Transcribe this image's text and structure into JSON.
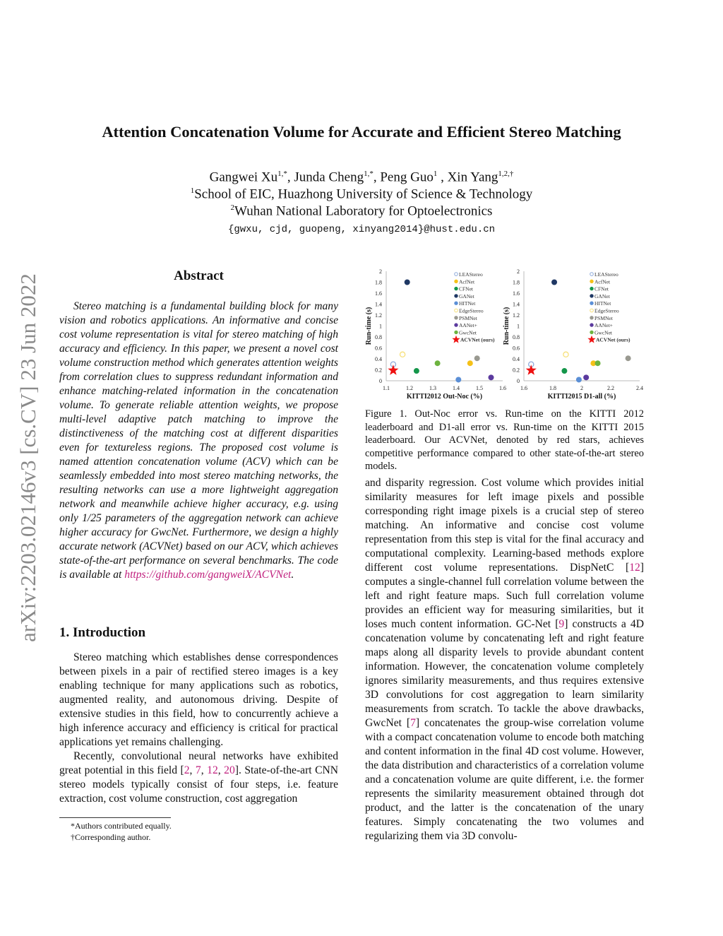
{
  "arxiv_stamp": "arXiv:2203.02146v3  [cs.CV]  23 Jun 2022",
  "title": "Attention Concatenation Volume for Accurate and Efficient Stereo Matching",
  "authors": {
    "names": [
      {
        "name": "Gangwei Xu",
        "sup": "1,*"
      },
      {
        "name": "Junda Cheng",
        "sup": "1,*"
      },
      {
        "name": "Peng Guo",
        "sup": "1"
      },
      {
        "name": "Xin Yang",
        "sup": "1,2,†"
      }
    ],
    "affiliations": [
      {
        "sup": "1",
        "text": "School of EIC, Huazhong University of Science & Technology"
      },
      {
        "sup": "2",
        "text": "Wuhan National Laboratory for Optoelectronics"
      }
    ],
    "emails": "{gwxu, cjd, guopeng, xinyang2014}@hust.edu.cn"
  },
  "abstract": {
    "heading": "Abstract",
    "text": "Stereo matching is a fundamental building block for many vision and robotics applications. An informative and concise cost volume representation is vital for stereo matching of high accuracy and efficiency. In this paper, we present a novel cost volume construction method which generates attention weights from correlation clues to suppress redundant information and enhance matching-related information in the concatenation volume. To generate reliable attention weights, we propose multi-level adaptive patch matching to improve the distinctiveness of the matching cost at different disparities even for textureless regions. The proposed cost volume is named attention concatenation volume (ACV) which can be seamlessly embedded into most stereo matching networks, the resulting networks can use a more lightweight aggregation network and meanwhile achieve higher accuracy, e.g. using only 1/25 parameters of the aggregation network can achieve higher accuracy for GwcNet. Furthermore, we design a highly accurate network (ACVNet) based on our ACV, which achieves state-of-the-art performance on several benchmarks. The code is available at ",
    "link": "https://github.com/gangweiX/ACVNet",
    "end": "."
  },
  "intro": {
    "heading": "1. Introduction",
    "p1": "Stereo matching which establishes dense correspondences between pixels in a pair of rectified stereo images is a key enabling technique for many applications such as robotics, augmented reality, and autonomous driving. Despite of extensive studies in this field, how to concurrently achieve a high inference accuracy and efficiency is critical for practical applications yet remains challenging.",
    "p2a": "Recently, convolutional neural networks have exhibited great potential in this field [",
    "p2refs": [
      "2",
      "7",
      "12",
      "20"
    ],
    "p2b": "]. State-of-the-art CNN stereo models typically consist of four steps, i.e. feature extraction, cost volume construction, cost aggregation"
  },
  "right_column": {
    "t1": "and disparity regression. Cost volume which provides initial similarity measures for left image pixels and possible corresponding right image pixels is a crucial step of stereo matching. An informative and concise cost volume representation from this step is vital for the final accuracy and computational complexity. Learning-based methods explore different cost volume representations. DispNetC [",
    "r1": "12",
    "t2": "] computes a single-channel full correlation volume between the left and right feature maps. Such full correlation volume provides an efficient way for measuring similarities, but it loses much content information. GC-Net [",
    "r2": "9",
    "t3": "] constructs a 4D concatenation volume by concatenating left and right feature maps along all disparity levels to provide abundant content information. However, the concatenation volume completely ignores similarity measurements, and thus requires extensive 3D convolutions for cost aggregation to learn similarity measurements from scratch. To tackle the above drawbacks, GwcNet [",
    "r3": "7",
    "t4": "] concatenates the group-wise correlation volume with a compact concatenation volume to encode both matching and content information in the final 4D cost volume. However, the data distribution and characteristics of a correlation volume and a concatenation volume are quite different, i.e. the former represents the similarity measurement obtained through dot product, and the latter is the concatenation of the unary features. Simply concatenating the two volumes and regularizing them via 3D convolu-"
  },
  "figure": {
    "caption": "Figure 1. Out-Noc error vs. Run-time on the KITTI 2012 leaderboard and D1-all error vs. Run-time on the KITTI 2015 leaderboard. Our ACVNet, denoted by red stars, achieves competitive performance compared to other state-of-the-art stereo models."
  },
  "footnotes": [
    "*Authors contributed equally.",
    "†Corresponding author."
  ],
  "chart_data": [
    {
      "type": "scatter",
      "xlabel": "KITTI2012 Out-Noc (%)",
      "ylabel": "Run-time (s)",
      "xlim": [
        1.1,
        1.6
      ],
      "ylim": [
        0,
        2
      ],
      "xticks": [
        "1.1",
        "1.2",
        "1.3",
        "1.4",
        "1.5",
        "1.6"
      ],
      "yticks": [
        "0",
        "0.2",
        "0.4",
        "0.6",
        "0.8",
        "1",
        "1.2",
        "1.4",
        "1.6",
        "1.8",
        "2"
      ],
      "grid": false,
      "legend_position": "top-right",
      "series": [
        {
          "name": "LEAStereo",
          "color": "#8eaadb",
          "marker": "open-circle",
          "x": 1.13,
          "y": 0.3
        },
        {
          "name": "AcfNet",
          "color": "#f5c118",
          "marker": "circle",
          "x": 1.46,
          "y": 0.32
        },
        {
          "name": "CFNet",
          "color": "#14964a",
          "marker": "circle",
          "x": 1.23,
          "y": 0.18
        },
        {
          "name": "GANet",
          "color": "#1f3864",
          "marker": "circle",
          "x": 1.19,
          "y": 1.8
        },
        {
          "name": "HITNet",
          "color": "#5b8fd6",
          "marker": "circle",
          "x": 1.41,
          "y": 0.02
        },
        {
          "name": "EdgeStereo",
          "color": "#f7e07a",
          "marker": "open-circle",
          "x": 1.17,
          "y": 0.48
        },
        {
          "name": "PSMNet",
          "color": "#999990",
          "marker": "circle",
          "x": 1.49,
          "y": 0.41
        },
        {
          "name": "AANet+",
          "color": "#5b3a9e",
          "marker": "circle",
          "x": 1.55,
          "y": 0.06
        },
        {
          "name": "GwcNet",
          "color": "#6db33f",
          "marker": "circle",
          "x": 1.32,
          "y": 0.32
        },
        {
          "name": "ACVNet (ours)",
          "color": "#ee1111",
          "marker": "star",
          "x": 1.13,
          "y": 0.19
        }
      ]
    },
    {
      "type": "scatter",
      "xlabel": "KITTI2015 D1-all (%)",
      "ylabel": "Run-time (s)",
      "xlim": [
        1.6,
        2.4
      ],
      "ylim": [
        0,
        2
      ],
      "xticks": [
        "1.6",
        "1.8",
        "2",
        "2.2",
        "2.4"
      ],
      "yticks": [
        "0",
        "0.2",
        "0.4",
        "0.6",
        "0.8",
        "1",
        "1.2",
        "1.4",
        "1.6",
        "1.8",
        "2"
      ],
      "grid": false,
      "legend_position": "top-right",
      "series": [
        {
          "name": "LEAStereo",
          "color": "#8eaadb",
          "marker": "open-circle",
          "x": 1.65,
          "y": 0.3
        },
        {
          "name": "AcfNet",
          "color": "#f5c118",
          "marker": "circle",
          "x": 2.08,
          "y": 0.32
        },
        {
          "name": "CFNet",
          "color": "#14964a",
          "marker": "circle",
          "x": 1.88,
          "y": 0.18
        },
        {
          "name": "GANet",
          "color": "#1f3864",
          "marker": "circle",
          "x": 1.81,
          "y": 1.8
        },
        {
          "name": "HITNet",
          "color": "#5b8fd6",
          "marker": "circle",
          "x": 1.98,
          "y": 0.02
        },
        {
          "name": "EdgeStereo",
          "color": "#f7e07a",
          "marker": "open-circle",
          "x": 1.89,
          "y": 0.48
        },
        {
          "name": "PSMNet",
          "color": "#999990",
          "marker": "circle",
          "x": 2.32,
          "y": 0.41
        },
        {
          "name": "AANet+",
          "color": "#5b3a9e",
          "marker": "circle",
          "x": 2.03,
          "y": 0.06
        },
        {
          "name": "GwcNet",
          "color": "#6db33f",
          "marker": "circle",
          "x": 2.11,
          "y": 0.32
        },
        {
          "name": "ACVNet (ours)",
          "color": "#ee1111",
          "marker": "star",
          "x": 1.65,
          "y": 0.19
        }
      ]
    }
  ]
}
